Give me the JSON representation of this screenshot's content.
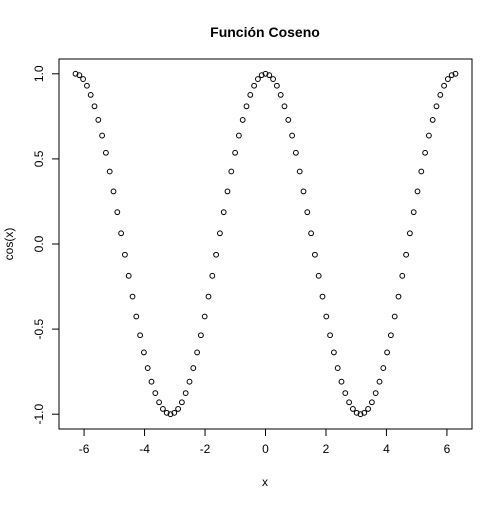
{
  "chart_data": {
    "type": "scatter",
    "title": "Función Coseno",
    "xlabel": "x",
    "ylabel": "cos(x)",
    "xlim": [
      -6.283,
      6.283
    ],
    "ylim": [
      -1,
      1
    ],
    "x_ticks": [
      -6,
      -4,
      -2,
      0,
      2,
      4,
      6
    ],
    "y_ticks": [
      -1.0,
      -0.5,
      0.0,
      0.5,
      1.0
    ],
    "x_tick_labels": [
      "-6",
      "-4",
      "-2",
      "0",
      "2",
      "4",
      "6"
    ],
    "y_tick_labels": [
      "-1.0",
      "-0.5",
      "0.0",
      "0.5",
      "1.0"
    ],
    "grid": false,
    "legend": "none",
    "marker": "open-circle",
    "color": "#000000",
    "series": [
      {
        "x": [
          -6.283,
          -6.157,
          -6.032,
          -5.906,
          -5.781,
          -5.655,
          -5.529,
          -5.404,
          -5.278,
          -5.152,
          -5.027,
          -4.901,
          -4.775,
          -4.65,
          -4.524,
          -4.398,
          -4.273,
          -4.147,
          -4.021,
          -3.896,
          -3.77,
          -3.644,
          -3.519,
          -3.393,
          -3.267,
          -3.142,
          -3.016,
          -2.89,
          -2.765,
          -2.639,
          -2.513,
          -2.388,
          -2.262,
          -2.136,
          -2.011,
          -1.885,
          -1.759,
          -1.634,
          -1.508,
          -1.382,
          -1.257,
          -1.131,
          -1.005,
          -0.88,
          -0.754,
          -0.628,
          -0.503,
          -0.377,
          -0.251,
          -0.126,
          0.0,
          0.126,
          0.251,
          0.377,
          0.503,
          0.628,
          0.754,
          0.88,
          1.005,
          1.131,
          1.257,
          1.382,
          1.508,
          1.634,
          1.759,
          1.885,
          2.011,
          2.136,
          2.262,
          2.388,
          2.513,
          2.639,
          2.765,
          2.89,
          3.016,
          3.142,
          3.267,
          3.393,
          3.519,
          3.644,
          3.77,
          3.896,
          4.021,
          4.147,
          4.273,
          4.398,
          4.524,
          4.65,
          4.775,
          4.901,
          5.027,
          5.152,
          5.278,
          5.404,
          5.529,
          5.655,
          5.781,
          5.906,
          6.032,
          6.157,
          6.283
        ],
        "y": [
          1.0,
          0.992,
          0.969,
          0.93,
          0.876,
          0.809,
          0.729,
          0.637,
          0.536,
          0.426,
          0.309,
          0.187,
          0.063,
          -0.063,
          -0.187,
          -0.309,
          -0.426,
          -0.536,
          -0.637,
          -0.729,
          -0.809,
          -0.876,
          -0.93,
          -0.969,
          -0.992,
          -1.0,
          -0.992,
          -0.969,
          -0.93,
          -0.876,
          -0.809,
          -0.729,
          -0.637,
          -0.536,
          -0.426,
          -0.309,
          -0.187,
          -0.063,
          0.063,
          0.187,
          0.309,
          0.426,
          0.536,
          0.637,
          0.729,
          0.809,
          0.876,
          0.93,
          0.969,
          0.992,
          1.0,
          0.992,
          0.969,
          0.93,
          0.876,
          0.809,
          0.729,
          0.637,
          0.536,
          0.426,
          0.309,
          0.187,
          0.063,
          -0.063,
          -0.187,
          -0.309,
          -0.426,
          -0.536,
          -0.637,
          -0.729,
          -0.809,
          -0.876,
          -0.93,
          -0.969,
          -0.992,
          -1.0,
          -0.992,
          -0.969,
          -0.93,
          -0.876,
          -0.809,
          -0.729,
          -0.637,
          -0.536,
          -0.426,
          -0.309,
          -0.187,
          -0.063,
          0.063,
          0.187,
          0.309,
          0.426,
          0.536,
          0.637,
          0.729,
          0.809,
          0.876,
          0.93,
          0.969,
          0.992,
          1.0
        ]
      }
    ]
  }
}
